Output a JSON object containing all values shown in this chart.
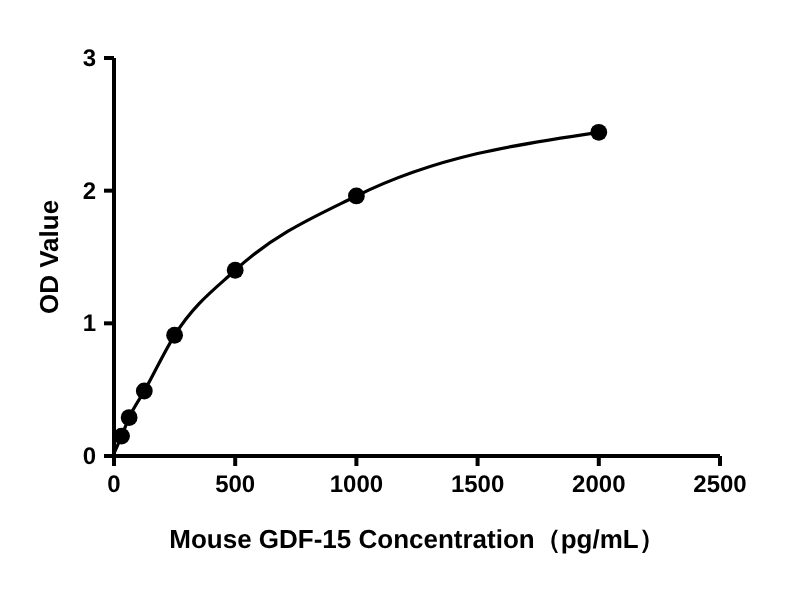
{
  "chart_data": {
    "type": "scatter",
    "xlabel": "Mouse GDF-15 Concentration（pg/mL）",
    "ylabel": "OD Value",
    "xlim": [
      0,
      2500
    ],
    "xticks": [
      0,
      500,
      1000,
      1500,
      2000,
      2500
    ],
    "ylim": [
      0,
      3
    ],
    "yticks": [
      0,
      1,
      2,
      3
    ],
    "grid": false,
    "series": [
      {
        "color": "#000000",
        "marker": "circle",
        "x": [
          31.25,
          62.5,
          125,
          250,
          500,
          1000,
          2000
        ],
        "values": [
          0.15,
          0.29,
          0.49,
          0.91,
          1.4,
          1.96,
          2.44
        ]
      },
      {
        "type": "line",
        "color": "#000000",
        "line_style": "solid",
        "marker": "none",
        "x": [
          0,
          31.25,
          62.5,
          125,
          250,
          500,
          1000,
          2000
        ],
        "values": [
          0.02,
          0.15,
          0.29,
          0.49,
          0.91,
          1.4,
          1.96,
          2.44
        ]
      }
    ]
  }
}
